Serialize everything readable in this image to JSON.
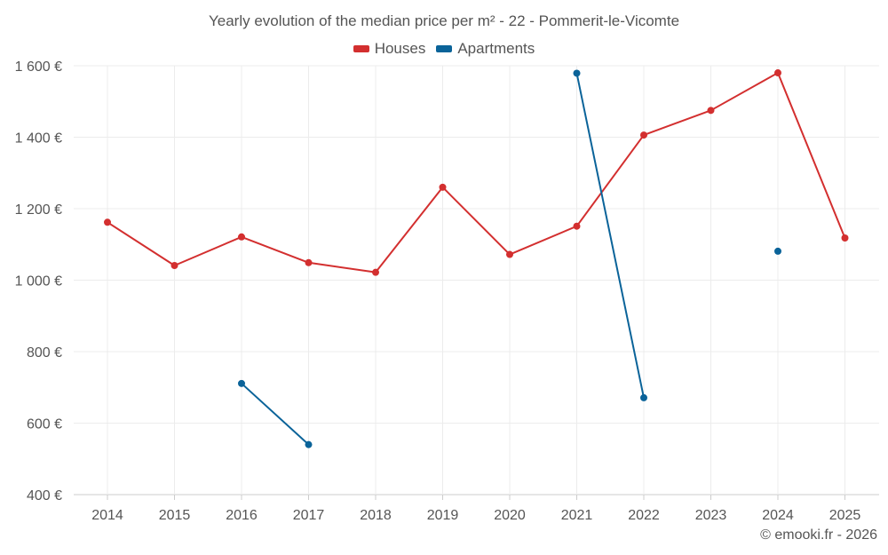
{
  "credit": "© emooki.fr - 2026",
  "chart_data": {
    "type": "line",
    "title": "Yearly evolution of the median price per m² - 22 - Pommerit-le-Vicomte",
    "categories": [
      "2014",
      "2015",
      "2016",
      "2017",
      "2018",
      "2019",
      "2020",
      "2021",
      "2022",
      "2023",
      "2024",
      "2025"
    ],
    "ylim": [
      400,
      1600
    ],
    "yticks": [
      400,
      600,
      800,
      1000,
      1200,
      1400,
      1600
    ],
    "ytick_labels": [
      "400 €",
      "600 €",
      "800 €",
      "1 000 €",
      "1 200 €",
      "1 400 €",
      "1 600 €"
    ],
    "grid": true,
    "legend_position": "top-center",
    "series": [
      {
        "name": "Houses",
        "color": "#d32f2f",
        "values": [
          1162,
          1041,
          1121,
          1049,
          1022,
          1260,
          1072,
          1151,
          1406,
          1475,
          1580,
          1118
        ]
      },
      {
        "name": "Apartments",
        "color": "#0a6399",
        "values": [
          null,
          null,
          711,
          540,
          null,
          null,
          null,
          1579,
          671,
          null,
          1081,
          null
        ]
      }
    ]
  }
}
